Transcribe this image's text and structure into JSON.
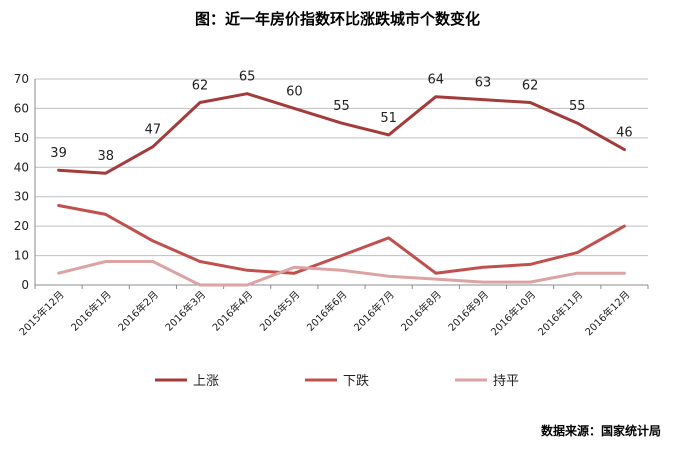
{
  "title": "图：近一年房价指数环比涨跌城市个数变化",
  "source": "数据来源：国家统计局",
  "chart_data": {
    "type": "line",
    "title": "图：近一年房价指数环比涨跌城市个数变化",
    "categories": [
      "2015年12月",
      "2016年1月",
      "2016年2月",
      "2016年3月",
      "2016年4月",
      "2016年5月",
      "2016年6月",
      "2016年7月",
      "2016年8月",
      "2016年9月",
      "2016年10月",
      "2016年11月",
      "2016年12月"
    ],
    "series": [
      {
        "name": "上涨",
        "color": "#a33b3b",
        "values": [
          39,
          38,
          47,
          62,
          65,
          60,
          55,
          51,
          64,
          63,
          62,
          55,
          46
        ],
        "labeled": true
      },
      {
        "name": "下跌",
        "color": "#c0504d",
        "values": [
          27,
          24,
          15,
          8,
          5,
          4,
          10,
          16,
          4,
          6,
          7,
          11,
          20
        ],
        "labeled": false
      },
      {
        "name": "持平",
        "color": "#dba3a3",
        "values": [
          4,
          8,
          8,
          0,
          0,
          6,
          5,
          3,
          2,
          1,
          1,
          4,
          4
        ],
        "labeled": false
      }
    ],
    "yticks": [
      "0",
      "10",
      "20",
      "30",
      "40",
      "50",
      "60",
      "70"
    ],
    "ylim": [
      0,
      70
    ],
    "grid": true,
    "legend": "bottom"
  }
}
